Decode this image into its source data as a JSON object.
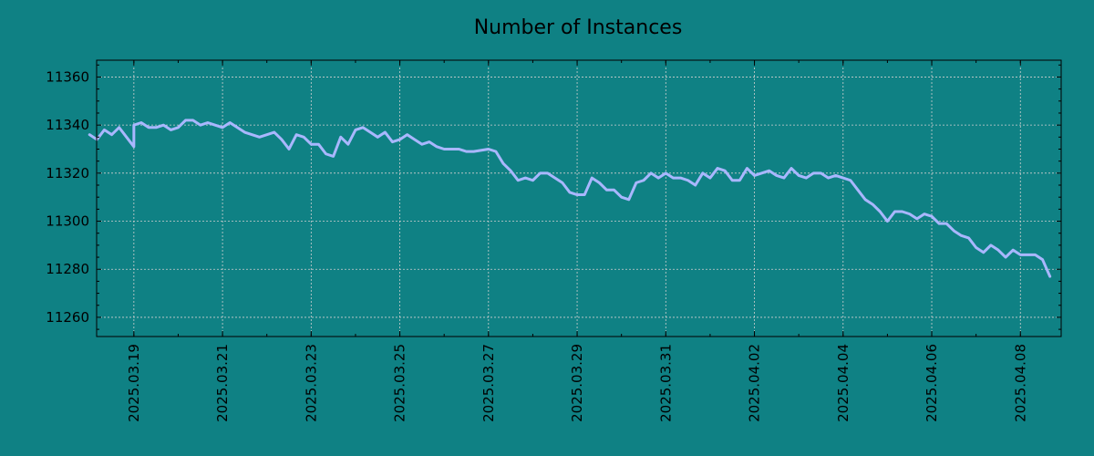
{
  "chart_data": {
    "type": "line",
    "title": "Number of Instances",
    "xlabel": "",
    "ylabel": "",
    "xlim": [
      "2025.03.18",
      "2025.04.09"
    ],
    "ylim": [
      11252,
      11367
    ],
    "y_ticks": [
      11260,
      11280,
      11300,
      11320,
      11340,
      11360
    ],
    "x_ticks": [
      "2025.03.19",
      "2025.03.21",
      "2025.03.23",
      "2025.03.25",
      "2025.03.27",
      "2025.03.29",
      "2025.03.31",
      "2025.04.02",
      "2025.04.04",
      "2025.04.06",
      "2025.04.08"
    ],
    "grid": true,
    "series": [
      {
        "color": "#a9b7ff",
        "points": [
          [
            "2025.03.18",
            11336
          ],
          [
            "2025.03.18",
            11334
          ],
          [
            "2025.03.18",
            11338
          ],
          [
            "2025.03.18",
            11336
          ],
          [
            "2025.03.18",
            11339
          ],
          [
            "2025.03.18",
            11335
          ],
          [
            "2025.03.18",
            11331
          ],
          [
            "2025.03.19",
            11340
          ],
          [
            "2025.03.19",
            11341
          ],
          [
            "2025.03.19",
            11339
          ],
          [
            "2025.03.19",
            11339
          ],
          [
            "2025.03.19",
            11340
          ],
          [
            "2025.03.19",
            11338
          ],
          [
            "2025.03.20",
            11339
          ],
          [
            "2025.03.20",
            11342
          ],
          [
            "2025.03.20",
            11342
          ],
          [
            "2025.03.20",
            11340
          ],
          [
            "2025.03.20",
            11341
          ],
          [
            "2025.03.20",
            11340
          ],
          [
            "2025.03.21",
            11339
          ],
          [
            "2025.03.21",
            11341
          ],
          [
            "2025.03.21",
            11339
          ],
          [
            "2025.03.21",
            11337
          ],
          [
            "2025.03.21",
            11336
          ],
          [
            "2025.03.21",
            11335
          ],
          [
            "2025.03.22",
            11336
          ],
          [
            "2025.03.22",
            11337
          ],
          [
            "2025.03.22",
            11334
          ],
          [
            "2025.03.22",
            11330
          ],
          [
            "2025.03.22",
            11336
          ],
          [
            "2025.03.22",
            11335
          ],
          [
            "2025.03.23",
            11332
          ],
          [
            "2025.03.23",
            11332
          ],
          [
            "2025.03.23",
            11328
          ],
          [
            "2025.03.23",
            11327
          ],
          [
            "2025.03.23",
            11335
          ],
          [
            "2025.03.23",
            11332
          ],
          [
            "2025.03.24",
            11338
          ],
          [
            "2025.03.24",
            11339
          ],
          [
            "2025.03.24",
            11337
          ],
          [
            "2025.03.24",
            11335
          ],
          [
            "2025.03.24",
            11337
          ],
          [
            "2025.03.24",
            11333
          ],
          [
            "2025.03.25",
            11334
          ],
          [
            "2025.03.25",
            11336
          ],
          [
            "2025.03.25",
            11334
          ],
          [
            "2025.03.25",
            11332
          ],
          [
            "2025.03.25",
            11333
          ],
          [
            "2025.03.25",
            11331
          ],
          [
            "2025.03.26",
            11330
          ],
          [
            "2025.03.26",
            11330
          ],
          [
            "2025.03.26",
            11330
          ],
          [
            "2025.03.26",
            11329
          ],
          [
            "2025.03.26",
            11329
          ],
          [
            "2025.03.27",
            11330
          ],
          [
            "2025.03.27",
            11329
          ],
          [
            "2025.03.27",
            11324
          ],
          [
            "2025.03.27",
            11321
          ],
          [
            "2025.03.27",
            11317
          ],
          [
            "2025.03.27",
            11318
          ],
          [
            "2025.03.28",
            11317
          ],
          [
            "2025.03.28",
            11320
          ],
          [
            "2025.03.28",
            11320
          ],
          [
            "2025.03.28",
            11318
          ],
          [
            "2025.03.28",
            11316
          ],
          [
            "2025.03.28",
            11312
          ],
          [
            "2025.03.29",
            11311
          ],
          [
            "2025.03.29",
            11311
          ],
          [
            "2025.03.29",
            11318
          ],
          [
            "2025.03.29",
            11316
          ],
          [
            "2025.03.29",
            11313
          ],
          [
            "2025.03.29",
            11313
          ],
          [
            "2025.03.30",
            11310
          ],
          [
            "2025.03.30",
            11309
          ],
          [
            "2025.03.30",
            11316
          ],
          [
            "2025.03.30",
            11317
          ],
          [
            "2025.03.30",
            11320
          ],
          [
            "2025.03.30",
            11318
          ],
          [
            "2025.03.31",
            11320
          ],
          [
            "2025.03.31",
            11318
          ],
          [
            "2025.03.31",
            11318
          ],
          [
            "2025.03.31",
            11317
          ],
          [
            "2025.03.31",
            11315
          ],
          [
            "2025.03.31",
            11320
          ],
          [
            "2025.04.01",
            11318
          ],
          [
            "2025.04.01",
            11322
          ],
          [
            "2025.04.01",
            11321
          ],
          [
            "2025.04.01",
            11317
          ],
          [
            "2025.04.01",
            11317
          ],
          [
            "2025.04.01",
            11322
          ],
          [
            "2025.04.02",
            11319
          ],
          [
            "2025.04.02",
            11320
          ],
          [
            "2025.04.02",
            11321
          ],
          [
            "2025.04.02",
            11319
          ],
          [
            "2025.04.02",
            11318
          ],
          [
            "2025.04.02",
            11322
          ],
          [
            "2025.04.03",
            11319
          ],
          [
            "2025.04.03",
            11318
          ],
          [
            "2025.04.03",
            11320
          ],
          [
            "2025.04.03",
            11320
          ],
          [
            "2025.04.03",
            11318
          ],
          [
            "2025.04.03",
            11319
          ],
          [
            "2025.04.04",
            11318
          ],
          [
            "2025.04.04",
            11317
          ],
          [
            "2025.04.04",
            11313
          ],
          [
            "2025.04.04",
            11309
          ],
          [
            "2025.04.04",
            11307
          ],
          [
            "2025.04.04",
            11304
          ],
          [
            "2025.04.05",
            11300
          ],
          [
            "2025.04.05",
            11304
          ],
          [
            "2025.04.05",
            11304
          ],
          [
            "2025.04.05",
            11303
          ],
          [
            "2025.04.05",
            11301
          ],
          [
            "2025.04.05",
            11303
          ],
          [
            "2025.04.06",
            11302
          ],
          [
            "2025.04.06",
            11299
          ],
          [
            "2025.04.06",
            11299
          ],
          [
            "2025.04.06",
            11296
          ],
          [
            "2025.04.06",
            11294
          ],
          [
            "2025.04.06",
            11293
          ],
          [
            "2025.04.07",
            11289
          ],
          [
            "2025.04.07",
            11287
          ],
          [
            "2025.04.07",
            11290
          ],
          [
            "2025.04.07",
            11288
          ],
          [
            "2025.04.07",
            11285
          ],
          [
            "2025.04.07",
            11288
          ],
          [
            "2025.04.08",
            11286
          ],
          [
            "2025.04.08",
            11286
          ],
          [
            "2025.04.08",
            11286
          ],
          [
            "2025.04.08",
            11284
          ],
          [
            "2025.04.08",
            11277
          ]
        ]
      }
    ]
  },
  "colors": {
    "background": "#0f8184",
    "line": "#a9b7ff",
    "grid": "#d0d0d0",
    "axis": "#000000"
  }
}
